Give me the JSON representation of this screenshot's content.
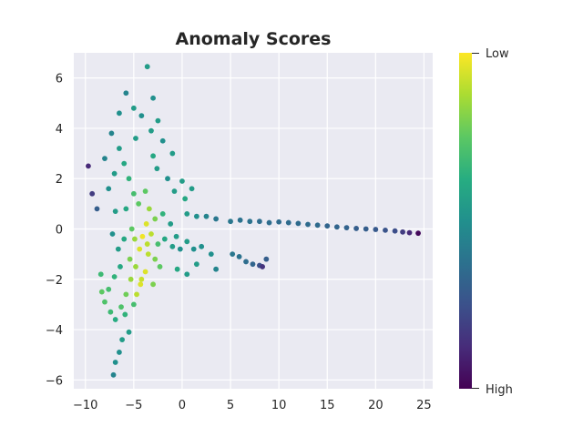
{
  "chart_data": {
    "type": "scatter",
    "title": "Anomaly Scores",
    "xlabel": "",
    "ylabel": "",
    "xlim": [
      -11.2,
      25.9
    ],
    "ylim": [
      -6.35,
      7.0
    ],
    "x_ticks": [
      -10,
      -5,
      0,
      5,
      10,
      15,
      20,
      25
    ],
    "y_ticks": [
      -6,
      -4,
      -2,
      0,
      2,
      4,
      6
    ],
    "grid": true,
    "colormap": "viridis",
    "colorbar": {
      "top_label": "Low",
      "bottom_label": "High",
      "position": "right"
    },
    "colors": {
      "plot_background": "#eaeaf2",
      "grid": "#ffffff",
      "text": "#262626",
      "viridis": [
        "#440154",
        "#472c7a",
        "#3b518b",
        "#2c718e",
        "#21908d",
        "#27ad81",
        "#5cc863",
        "#aadc32",
        "#fde725"
      ]
    },
    "points": [
      {
        "x": -3.6,
        "y": 6.45,
        "score": 0.55
      },
      {
        "x": -5.8,
        "y": 5.4,
        "score": 0.45
      },
      {
        "x": -3.0,
        "y": 5.2,
        "score": 0.5
      },
      {
        "x": -6.5,
        "y": 4.6,
        "score": 0.5
      },
      {
        "x": -5.0,
        "y": 4.8,
        "score": 0.55
      },
      {
        "x": -4.2,
        "y": 4.5,
        "score": 0.5
      },
      {
        "x": -2.5,
        "y": 4.3,
        "score": 0.55
      },
      {
        "x": -7.3,
        "y": 3.8,
        "score": 0.45
      },
      {
        "x": -2.0,
        "y": 3.5,
        "score": 0.5
      },
      {
        "x": -1.0,
        "y": 3.0,
        "score": 0.55
      },
      {
        "x": -1.5,
        "y": 2.0,
        "score": 0.5
      },
      {
        "x": -0.8,
        "y": 1.5,
        "score": 0.55
      },
      {
        "x": 0.0,
        "y": 1.9,
        "score": 0.55
      },
      {
        "x": 0.3,
        "y": 1.2,
        "score": 0.6
      },
      {
        "x": 1.0,
        "y": 1.6,
        "score": 0.55
      },
      {
        "x": 0.5,
        "y": 0.6,
        "score": 0.55
      },
      {
        "x": 1.5,
        "y": 0.5,
        "score": 0.5
      },
      {
        "x": 2.5,
        "y": 0.5,
        "score": 0.45
      },
      {
        "x": 3.5,
        "y": 0.4,
        "score": 0.4
      },
      {
        "x": -9.7,
        "y": 2.5,
        "score": 0.12
      },
      {
        "x": -9.3,
        "y": 1.4,
        "score": 0.18
      },
      {
        "x": -8.8,
        "y": 0.8,
        "score": 0.3
      },
      {
        "x": -8.0,
        "y": 2.8,
        "score": 0.45
      },
      {
        "x": -7.6,
        "y": 1.6,
        "score": 0.5
      },
      {
        "x": -7.0,
        "y": 2.2,
        "score": 0.55
      },
      {
        "x": -6.5,
        "y": 3.2,
        "score": 0.55
      },
      {
        "x": -6.0,
        "y": 2.6,
        "score": 0.6
      },
      {
        "x": -5.5,
        "y": 2.0,
        "score": 0.65
      },
      {
        "x": -5.0,
        "y": 1.4,
        "score": 0.7
      },
      {
        "x": -4.5,
        "y": 1.0,
        "score": 0.75
      },
      {
        "x": -4.8,
        "y": 3.6,
        "score": 0.55
      },
      {
        "x": -3.2,
        "y": 3.9,
        "score": 0.55
      },
      {
        "x": -3.0,
        "y": 2.9,
        "score": 0.6
      },
      {
        "x": -2.6,
        "y": 2.4,
        "score": 0.55
      },
      {
        "x": -3.8,
        "y": 1.5,
        "score": 0.75
      },
      {
        "x": -3.4,
        "y": 0.8,
        "score": 0.85
      },
      {
        "x": -3.7,
        "y": 0.2,
        "score": 0.95
      },
      {
        "x": -4.1,
        "y": -0.3,
        "score": 0.98
      },
      {
        "x": -4.4,
        "y": -0.8,
        "score": 0.95
      },
      {
        "x": -3.6,
        "y": -0.6,
        "score": 0.9
      },
      {
        "x": -3.2,
        "y": -0.2,
        "score": 0.9
      },
      {
        "x": -2.8,
        "y": 0.4,
        "score": 0.8
      },
      {
        "x": -2.5,
        "y": -0.6,
        "score": 0.7
      },
      {
        "x": -2.0,
        "y": 0.6,
        "score": 0.65
      },
      {
        "x": -1.8,
        "y": -0.4,
        "score": 0.6
      },
      {
        "x": -1.2,
        "y": 0.2,
        "score": 0.55
      },
      {
        "x": -1.0,
        "y": -0.7,
        "score": 0.55
      },
      {
        "x": -0.6,
        "y": -0.3,
        "score": 0.55
      },
      {
        "x": -0.2,
        "y": -0.8,
        "score": 0.5
      },
      {
        "x": 0.5,
        "y": -0.5,
        "score": 0.55
      },
      {
        "x": 1.2,
        "y": -0.8,
        "score": 0.5
      },
      {
        "x": 2.0,
        "y": -0.7,
        "score": 0.5
      },
      {
        "x": 3.0,
        "y": -1.0,
        "score": 0.5
      },
      {
        "x": 3.5,
        "y": -1.6,
        "score": 0.45
      },
      {
        "x": 1.5,
        "y": -1.4,
        "score": 0.55
      },
      {
        "x": 0.5,
        "y": -1.8,
        "score": 0.55
      },
      {
        "x": -0.5,
        "y": -1.6,
        "score": 0.6
      },
      {
        "x": -2.3,
        "y": -1.5,
        "score": 0.75
      },
      {
        "x": -2.8,
        "y": -1.2,
        "score": 0.8
      },
      {
        "x": -3.8,
        "y": -1.7,
        "score": 0.95
      },
      {
        "x": -4.3,
        "y": -2.2,
        "score": 0.95
      },
      {
        "x": -4.8,
        "y": -1.5,
        "score": 0.85
      },
      {
        "x": -5.4,
        "y": -1.2,
        "score": 0.8
      },
      {
        "x": -6.0,
        "y": -0.4,
        "score": 0.6
      },
      {
        "x": -6.6,
        "y": -0.8,
        "score": 0.55
      },
      {
        "x": -7.2,
        "y": -0.2,
        "score": 0.5
      },
      {
        "x": -6.9,
        "y": 0.7,
        "score": 0.55
      },
      {
        "x": -5.8,
        "y": 0.8,
        "score": 0.6
      },
      {
        "x": -5.2,
        "y": 0.0,
        "score": 0.75
      },
      {
        "x": -4.9,
        "y": -0.4,
        "score": 0.85
      },
      {
        "x": -6.4,
        "y": -1.5,
        "score": 0.6
      },
      {
        "x": -7.0,
        "y": -1.9,
        "score": 0.65
      },
      {
        "x": -7.6,
        "y": -2.4,
        "score": 0.7
      },
      {
        "x": -8.0,
        "y": -2.9,
        "score": 0.72
      },
      {
        "x": -7.4,
        "y": -3.3,
        "score": 0.68
      },
      {
        "x": -6.9,
        "y": -3.6,
        "score": 0.62
      },
      {
        "x": -6.3,
        "y": -3.1,
        "score": 0.72
      },
      {
        "x": -5.8,
        "y": -2.6,
        "score": 0.78
      },
      {
        "x": -5.3,
        "y": -2.0,
        "score": 0.85
      },
      {
        "x": -4.7,
        "y": -2.6,
        "score": 0.9
      },
      {
        "x": -4.2,
        "y": -2.0,
        "score": 0.92
      },
      {
        "x": -5.9,
        "y": -3.4,
        "score": 0.65
      },
      {
        "x": -5.5,
        "y": -4.1,
        "score": 0.55
      },
      {
        "x": -6.2,
        "y": -4.4,
        "score": 0.55
      },
      {
        "x": -6.5,
        "y": -4.9,
        "score": 0.5
      },
      {
        "x": -6.9,
        "y": -5.3,
        "score": 0.5
      },
      {
        "x": -7.1,
        "y": -5.8,
        "score": 0.45
      },
      {
        "x": -8.4,
        "y": -1.8,
        "score": 0.68
      },
      {
        "x": -8.3,
        "y": -2.5,
        "score": 0.75
      },
      {
        "x": -5.0,
        "y": -3.0,
        "score": 0.7
      },
      {
        "x": -3.0,
        "y": -2.2,
        "score": 0.8
      },
      {
        "x": -3.5,
        "y": -1.0,
        "score": 0.9
      },
      {
        "x": 5.0,
        "y": 0.3,
        "score": 0.4
      },
      {
        "x": 6.0,
        "y": 0.35,
        "score": 0.38
      },
      {
        "x": 7.0,
        "y": 0.3,
        "score": 0.38
      },
      {
        "x": 8.0,
        "y": 0.3,
        "score": 0.36
      },
      {
        "x": 9.0,
        "y": 0.25,
        "score": 0.36
      },
      {
        "x": 10.0,
        "y": 0.28,
        "score": 0.35
      },
      {
        "x": 11.0,
        "y": 0.25,
        "score": 0.35
      },
      {
        "x": 12.0,
        "y": 0.22,
        "score": 0.35
      },
      {
        "x": 13.0,
        "y": 0.18,
        "score": 0.35
      },
      {
        "x": 14.0,
        "y": 0.15,
        "score": 0.35
      },
      {
        "x": 15.0,
        "y": 0.12,
        "score": 0.33
      },
      {
        "x": 16.0,
        "y": 0.08,
        "score": 0.33
      },
      {
        "x": 17.0,
        "y": 0.05,
        "score": 0.32
      },
      {
        "x": 18.0,
        "y": 0.02,
        "score": 0.3
      },
      {
        "x": 19.0,
        "y": 0.0,
        "score": 0.3
      },
      {
        "x": 20.0,
        "y": -0.02,
        "score": 0.28
      },
      {
        "x": 21.0,
        "y": -0.05,
        "score": 0.26
      },
      {
        "x": 22.0,
        "y": -0.08,
        "score": 0.24
      },
      {
        "x": 22.8,
        "y": -0.12,
        "score": 0.18
      },
      {
        "x": 23.5,
        "y": -0.15,
        "score": 0.12
      },
      {
        "x": 24.4,
        "y": -0.17,
        "score": 0.02
      },
      {
        "x": 5.2,
        "y": -1.0,
        "score": 0.4
      },
      {
        "x": 5.9,
        "y": -1.1,
        "score": 0.38
      },
      {
        "x": 6.6,
        "y": -1.3,
        "score": 0.36
      },
      {
        "x": 7.3,
        "y": -1.4,
        "score": 0.33
      },
      {
        "x": 8.0,
        "y": -1.45,
        "score": 0.25
      },
      {
        "x": 8.3,
        "y": -1.5,
        "score": 0.15
      },
      {
        "x": 8.7,
        "y": -1.2,
        "score": 0.3
      }
    ]
  }
}
